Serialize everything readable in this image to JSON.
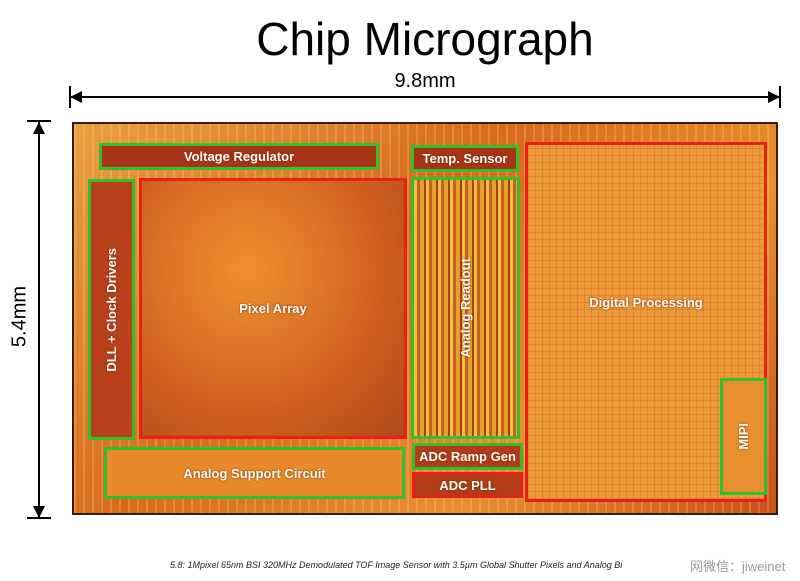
{
  "title": "Chip Micrograph",
  "dimensions": {
    "width": "9.8mm",
    "height": "5.4mm"
  },
  "blocks": {
    "voltage_regulator": "Voltage Regulator",
    "temp_sensor": "Temp. Sensor",
    "dll_clock_drivers": "DLL + Clock Drivers",
    "pixel_array": "Pixel Array",
    "analog_readout": "Analog Readout",
    "digital_processing": "Digital Processing",
    "mipi": "MIPI",
    "analog_support": "Analog Support Circuit",
    "adc_ramp_gen": "ADC Ramp Gen",
    "adc_pll": "ADC PLL"
  },
  "colors": {
    "functional_block_outline": "#2fbf2f",
    "core_block_outline": "#e8201a"
  },
  "caption": "5.8: 1Mpixel 65nm BSI 320MHz Demodulated TOF Image Sensor with 3.5µm Global Shutter Pixels and Analog Bi",
  "watermark": "网微信：jiweinet"
}
